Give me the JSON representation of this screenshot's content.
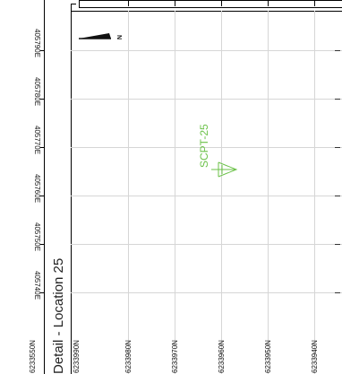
{
  "map": {
    "title": "Detail - Location 25",
    "easting_labels": [
      "405790E",
      "405780E",
      "405770E",
      "405760E",
      "405750E",
      "405740E"
    ],
    "northing_labels": [
      "6233990N",
      "6233980N",
      "6233970N",
      "6233960N",
      "6233950N",
      "6233940N"
    ],
    "left_strip_northing": "6233550N",
    "north_arrow_label": "N",
    "location": {
      "label": "SCPT-25",
      "color": "#6cc24a"
    }
  }
}
